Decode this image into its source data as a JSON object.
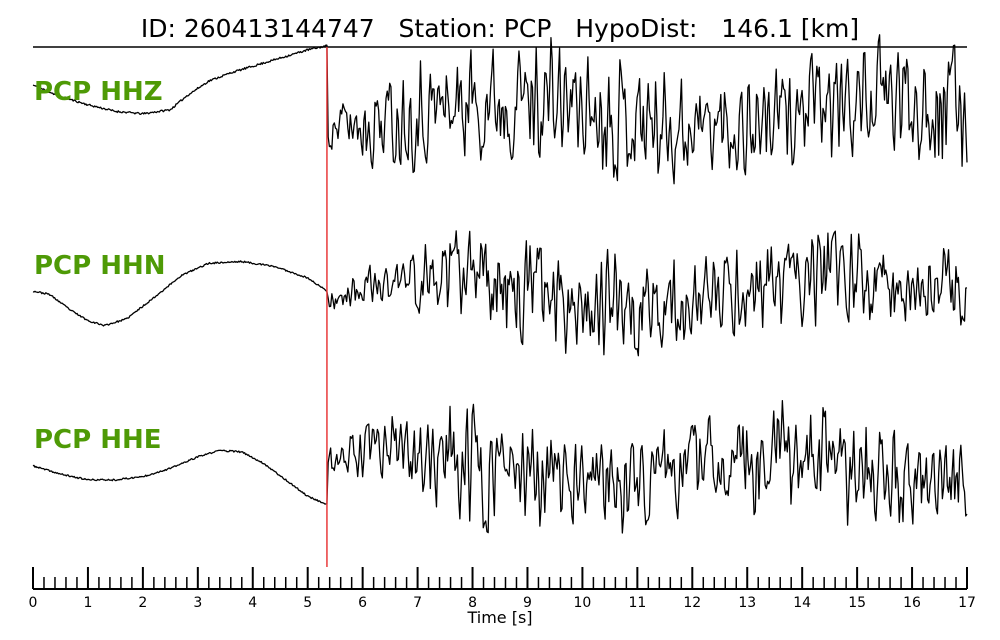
{
  "chart_data": {
    "type": "line",
    "title": "ID: 260413144747   Station: PCP   HypoDist:   146.1 [km]",
    "xlabel": "Time [s]",
    "xlim": [
      0,
      17
    ],
    "xticks": [
      "0",
      "1",
      "2",
      "3",
      "4",
      "5",
      "6",
      "7",
      "8",
      "9",
      "10",
      "11",
      "12",
      "13",
      "14",
      "15",
      "16",
      "17"
    ],
    "pick_time": 5.35,
    "pick_color": "#e8393b",
    "label_color": "#4e9a06",
    "trace_color": "#000000",
    "grid": false,
    "series": [
      {
        "name": "PCP HHZ",
        "pre_event": [
          [
            0,
            0.45
          ],
          [
            0.5,
            0.31
          ],
          [
            1.0,
            0.21
          ],
          [
            1.5,
            0.13
          ],
          [
            2.0,
            0.1
          ],
          [
            2.5,
            0.15
          ],
          [
            2.8,
            0.32
          ],
          [
            3.2,
            0.5
          ],
          [
            3.6,
            0.6
          ],
          [
            4.0,
            0.68
          ],
          [
            4.5,
            0.78
          ],
          [
            5.0,
            0.88
          ],
          [
            5.35,
            0.93
          ]
        ],
        "pre_noise": 0.012,
        "coda": [
          [
            5.35,
            0.3
          ],
          [
            6.0,
            0.65
          ],
          [
            7.0,
            0.82
          ],
          [
            8.0,
            0.88
          ],
          [
            9.0,
            0.9
          ],
          [
            10.0,
            0.88
          ],
          [
            11.0,
            0.9
          ],
          [
            12.0,
            0.85
          ],
          [
            13.0,
            0.8
          ],
          [
            14.0,
            0.82
          ],
          [
            15.0,
            0.82
          ],
          [
            16.0,
            0.92
          ],
          [
            17.0,
            1.0
          ]
        ],
        "coda_offset": 0.12,
        "seed": 11
      },
      {
        "name": "PCP HHN",
        "pre_event": [
          [
            0,
            0.06
          ],
          [
            0.3,
            0.02
          ],
          [
            0.7,
            -0.18
          ],
          [
            1.0,
            -0.3
          ],
          [
            1.3,
            -0.36
          ],
          [
            1.7,
            -0.28
          ],
          [
            2.2,
            -0.02
          ],
          [
            2.7,
            0.25
          ],
          [
            3.2,
            0.4
          ],
          [
            3.8,
            0.42
          ],
          [
            4.4,
            0.36
          ],
          [
            5.0,
            0.22
          ],
          [
            5.35,
            0.06
          ]
        ],
        "pre_noise": 0.01,
        "coda": [
          [
            5.35,
            0.22
          ],
          [
            6.0,
            0.28
          ],
          [
            7.0,
            0.58
          ],
          [
            8.0,
            0.7
          ],
          [
            9.0,
            0.82
          ],
          [
            10.0,
            0.72
          ],
          [
            11.0,
            0.75
          ],
          [
            12.0,
            0.72
          ],
          [
            13.0,
            0.6
          ],
          [
            14.0,
            0.66
          ],
          [
            15.0,
            0.68
          ],
          [
            16.0,
            0.7
          ],
          [
            17.0,
            0.62
          ]
        ],
        "coda_offset": 0.05,
        "seed": 23
      },
      {
        "name": "PCP HHE",
        "pre_event": [
          [
            0,
            0.05
          ],
          [
            0.5,
            -0.05
          ],
          [
            1.0,
            -0.12
          ],
          [
            1.5,
            -0.12
          ],
          [
            2.0,
            -0.08
          ],
          [
            2.5,
            0.02
          ],
          [
            3.0,
            0.16
          ],
          [
            3.4,
            0.24
          ],
          [
            3.8,
            0.22
          ],
          [
            4.2,
            0.08
          ],
          [
            4.6,
            -0.12
          ],
          [
            5.0,
            -0.32
          ],
          [
            5.35,
            -0.42
          ]
        ],
        "pre_noise": 0.01,
        "coda": [
          [
            5.35,
            0.28
          ],
          [
            6.0,
            0.5
          ],
          [
            7.0,
            0.72
          ],
          [
            8.0,
            0.9
          ],
          [
            9.0,
            0.82
          ],
          [
            10.0,
            0.72
          ],
          [
            11.0,
            0.7
          ],
          [
            12.0,
            0.7
          ],
          [
            13.0,
            0.82
          ],
          [
            14.0,
            0.8
          ],
          [
            15.0,
            0.8
          ],
          [
            16.0,
            0.86
          ],
          [
            17.0,
            0.72
          ]
        ],
        "coda_offset": 0.0,
        "seed": 37
      }
    ]
  }
}
